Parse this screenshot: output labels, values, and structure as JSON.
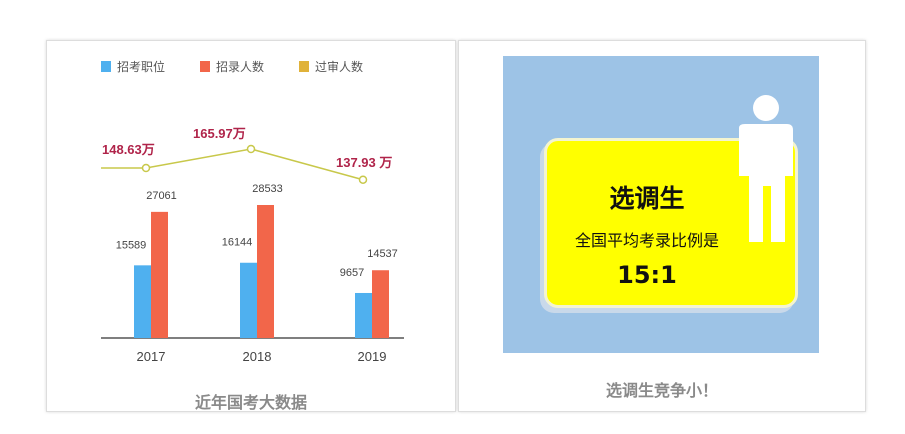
{
  "chart_data": {
    "type": "bar",
    "categories": [
      "2017",
      "2018",
      "2019"
    ],
    "series": [
      {
        "name": "招考职位",
        "kind": "bar",
        "color": "#4fb0ef",
        "values": [
          15589,
          16144,
          9657
        ],
        "labels": [
          "15589",
          "16144",
          "9657"
        ]
      },
      {
        "name": "招录人数",
        "kind": "bar",
        "color": "#f2664a",
        "values": [
          27061,
          28533,
          14537
        ],
        "labels": [
          "27061",
          "28533",
          "14537"
        ]
      },
      {
        "name": "过审人数",
        "kind": "line",
        "color": "#e0b23a",
        "line_color": "#c8c84a",
        "values": [
          148.63,
          165.97,
          137.93
        ],
        "labels": [
          "148.63万",
          "165.97万",
          "137.93 万"
        ],
        "label_color": "#b0244a"
      }
    ],
    "title": "近年国考大数据",
    "legend": "top",
    "grid": false
  },
  "infographic": {
    "title": "选调生",
    "subtitle": "全国平均考录比例是",
    "ratio": "15:1",
    "caption": "选调生竞争小！",
    "background": "#9dc3e6",
    "card_color": "#ffff00"
  }
}
